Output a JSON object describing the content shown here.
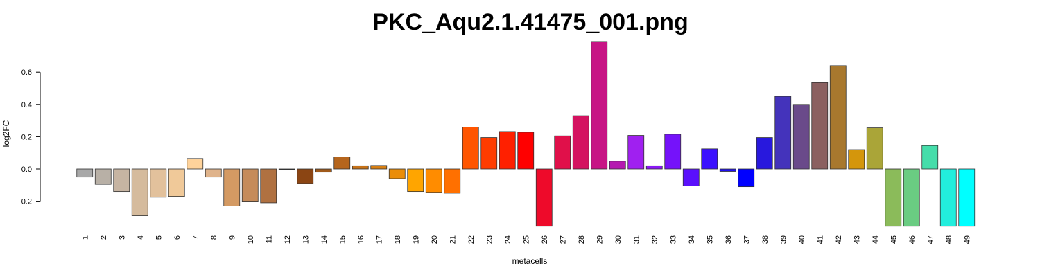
{
  "chart_data": {
    "type": "bar",
    "title": "PKC_Aqu2.1.41475_001.png",
    "xlabel": "metacells",
    "ylabel": "log2FC",
    "ylim": [
      -0.36,
      0.8
    ],
    "yticks": [
      -0.2,
      0.0,
      0.2,
      0.4,
      0.6
    ],
    "ytick_labels": [
      "-0.2",
      "0.0",
      "0.2",
      "0.4",
      "0.6"
    ],
    "grid": false,
    "categories": [
      "1",
      "2",
      "3",
      "4",
      "5",
      "6",
      "7",
      "8",
      "9",
      "10",
      "11",
      "12",
      "13",
      "14",
      "15",
      "16",
      "17",
      "18",
      "19",
      "20",
      "21",
      "22",
      "23",
      "24",
      "25",
      "26",
      "27",
      "28",
      "29",
      "30",
      "31",
      "32",
      "33",
      "34",
      "35",
      "36",
      "37",
      "38",
      "39",
      "40",
      "41",
      "42",
      "43",
      "44",
      "45",
      "46",
      "47",
      "48",
      "49"
    ],
    "values": [
      -0.05,
      -0.095,
      -0.14,
      -0.29,
      -0.175,
      -0.17,
      0.065,
      -0.05,
      -0.23,
      -0.2,
      -0.21,
      0.0,
      -0.09,
      -0.02,
      0.075,
      0.02,
      0.022,
      -0.06,
      -0.14,
      -0.145,
      -0.15,
      0.26,
      0.195,
      0.232,
      0.228,
      -0.355,
      0.205,
      0.33,
      0.79,
      0.048,
      0.208,
      0.02,
      0.215,
      -0.105,
      0.125,
      -0.015,
      -0.11,
      0.195,
      0.45,
      0.4,
      0.535,
      0.64,
      0.12,
      0.255,
      -0.355,
      -0.355,
      0.145,
      -0.355,
      -0.355
    ],
    "colors": [
      "#a8a8a8",
      "#b8b0a6",
      "#c6b4a2",
      "#d5bb9d",
      "#e2c19c",
      "#f0c999",
      "#ffd39b",
      "#dfb38b",
      "#d49a63",
      "#c58b5a",
      "#b07141",
      "#8c5a2e",
      "#8b4513",
      "#a05a1b",
      "#b5651d",
      "#c67218",
      "#d87f12",
      "#ea8d08",
      "#ffa500",
      "#ff8c00",
      "#ff7000",
      "#ff5500",
      "#ff3c00",
      "#ff2000",
      "#ff0000",
      "#ee0a2a",
      "#e0104a",
      "#d41260",
      "#c71585",
      "#b51ab0",
      "#a020f0",
      "#8a18f5",
      "#7512fa",
      "#5a10fc",
      "#3b10fe",
      "#2010f0",
      "#0000ff",
      "#2818dd",
      "#4433bb",
      "#6a4a8a",
      "#8b6060",
      "#a8782e",
      "#d4960c",
      "#aaa538",
      "#8bbb5a",
      "#6acc82",
      "#45ddaa",
      "#22eedd",
      "#00ffff"
    ]
  }
}
